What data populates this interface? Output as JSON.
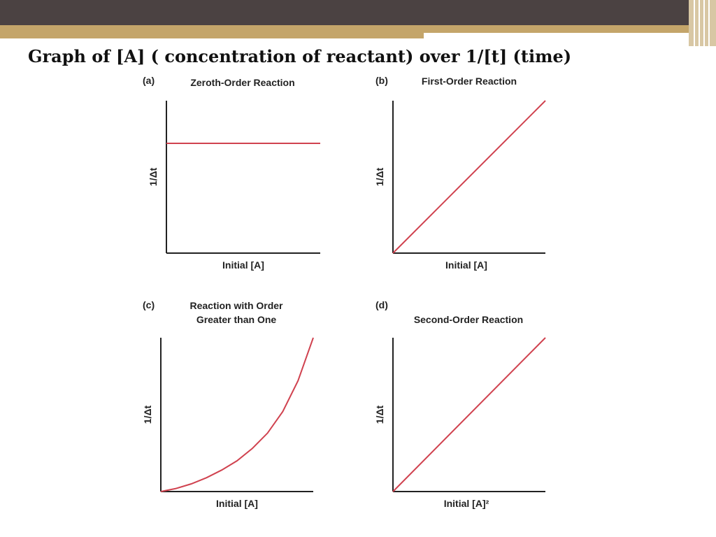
{
  "slide": {
    "title": "Graph of [A] ( concentration of reactant) over 1/[t]  (time)"
  },
  "colors": {
    "header": "#4b4242",
    "accent": "#c4a56a",
    "curve": "#d0424f",
    "axis": "#222222"
  },
  "chart_data": [
    {
      "panel": "(a)",
      "title": "Zeroth-Order Reaction",
      "type": "line",
      "xlabel": "Initial [A]",
      "ylabel": "1/Δt",
      "shape": "constant",
      "series": [
        {
          "x": [
            0,
            1
          ],
          "y": [
            0.72,
            0.72
          ]
        }
      ],
      "xlim": [
        0,
        1
      ],
      "ylim": [
        0,
        1
      ],
      "grid": false
    },
    {
      "panel": "(b)",
      "title": "First-Order Reaction",
      "type": "line",
      "xlabel": "Initial [A]",
      "ylabel": "1/Δt",
      "shape": "linear",
      "series": [
        {
          "x": [
            0,
            1
          ],
          "y": [
            0,
            1
          ]
        }
      ],
      "xlim": [
        0,
        1
      ],
      "ylim": [
        0,
        1
      ],
      "grid": false
    },
    {
      "panel": "(c)",
      "title": "Reaction with Order Greater than One",
      "title_lines": [
        "Reaction with Order",
        "Greater than One"
      ],
      "type": "line",
      "xlabel": "Initial [A]",
      "ylabel": "1/Δt",
      "shape": "increasing convex",
      "series": [
        {
          "x": [
            0,
            0.1,
            0.2,
            0.3,
            0.4,
            0.5,
            0.6,
            0.7,
            0.8,
            0.9,
            1
          ],
          "y": [
            0,
            0.02,
            0.05,
            0.09,
            0.14,
            0.2,
            0.28,
            0.38,
            0.52,
            0.72,
            1
          ]
        }
      ],
      "xlim": [
        0,
        1
      ],
      "ylim": [
        0,
        1
      ],
      "grid": false
    },
    {
      "panel": "(d)",
      "title": "Second-Order Reaction",
      "type": "line",
      "xlabel": "Initial [A]²",
      "ylabel": "1/Δt",
      "shape": "linear",
      "series": [
        {
          "x": [
            0,
            1
          ],
          "y": [
            0,
            1
          ]
        }
      ],
      "xlim": [
        0,
        1
      ],
      "ylim": [
        0,
        1
      ],
      "grid": false
    }
  ]
}
